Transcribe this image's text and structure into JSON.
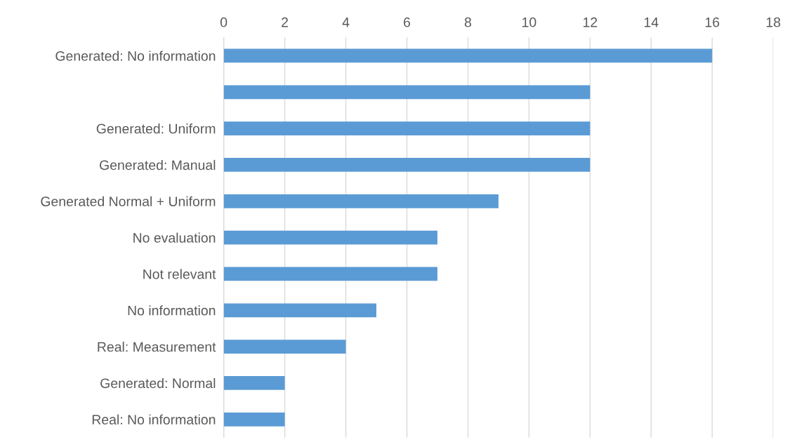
{
  "chart_data": {
    "type": "bar",
    "orientation": "horizontal",
    "categories": [
      "Generated: No information",
      null,
      "Generated: Uniform",
      "Generated: Manual",
      "Generated Normal + Uniform",
      "No evaluation",
      "Not relevant",
      "No information",
      "Real: Measurement",
      "Generated: Normal",
      "Real: No information"
    ],
    "values": [
      16,
      12,
      12,
      12,
      9,
      7,
      7,
      5,
      4,
      2,
      2
    ],
    "color": "#5b9bd5",
    "xlim": [
      0,
      18
    ],
    "xticks": [
      0,
      2,
      4,
      6,
      8,
      10,
      12,
      14,
      16,
      18
    ],
    "grid": "x"
  }
}
